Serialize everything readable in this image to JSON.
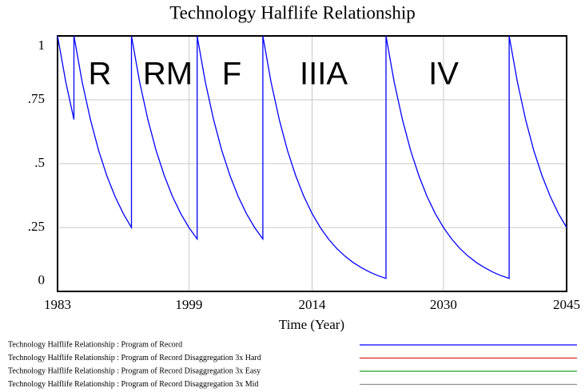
{
  "chart_data": {
    "type": "line",
    "title": "Technology Halflife Relationship",
    "xlabel": "Time (Year)",
    "annotations": [
      "R",
      "RM",
      "F",
      "IIIA",
      "IV"
    ],
    "xlim": [
      1983,
      2045
    ],
    "xticks": [
      1983,
      1999,
      2014,
      2030,
      2045
    ],
    "ylim": [
      0,
      1
    ],
    "yticks": [
      {
        "value": 0,
        "label": "0"
      },
      {
        "value": 0.25,
        "label": ".25"
      },
      {
        "value": 0.5,
        "label": ".5"
      },
      {
        "value": 0.75,
        "label": ".75"
      },
      {
        "value": 1,
        "label": "1"
      }
    ],
    "grid": true,
    "series": [
      {
        "name": "Technology Halflife Relationship : Program of Record",
        "color": "#0000ff",
        "x": [
          1983,
          1984,
          1985,
          1985,
          1986,
          1987,
          1988,
          1989,
          1990,
          1991,
          1992,
          1992,
          1993,
          1994,
          1995,
          1996,
          1997,
          1998,
          1999,
          2000,
          2000,
          2001,
          2002,
          2003,
          2004,
          2005,
          2006,
          2007,
          2008,
          2008,
          2009,
          2010,
          2011,
          2012,
          2013,
          2014,
          2015,
          2016,
          2017,
          2018,
          2019,
          2020,
          2021,
          2022,
          2023,
          2023,
          2024,
          2025,
          2026,
          2027,
          2028,
          2029,
          2030,
          2031,
          2032,
          2033,
          2034,
          2035,
          2036,
          2037,
          2038,
          2038,
          2039,
          2040,
          2041,
          2042,
          2043,
          2044,
          2045
        ],
        "values": [
          1,
          0.82,
          0.673,
          1,
          0.82,
          0.673,
          0.552,
          0.453,
          0.372,
          0.305,
          0.25,
          1,
          0.82,
          0.673,
          0.552,
          0.453,
          0.372,
          0.305,
          0.25,
          0.205,
          1,
          0.82,
          0.673,
          0.552,
          0.453,
          0.372,
          0.305,
          0.25,
          0.205,
          1,
          0.82,
          0.673,
          0.552,
          0.453,
          0.372,
          0.305,
          0.25,
          0.205,
          0.168,
          0.138,
          0.113,
          0.093,
          0.076,
          0.062,
          0.051,
          1,
          0.82,
          0.673,
          0.552,
          0.453,
          0.372,
          0.305,
          0.25,
          0.205,
          0.168,
          0.138,
          0.113,
          0.093,
          0.076,
          0.062,
          0.051,
          1,
          0.82,
          0.673,
          0.552,
          0.453,
          0.372,
          0.305,
          0.25
        ]
      },
      {
        "name": "Technology Halflife Relationship : Program of Record Disaggregation 3x Hard",
        "color": "#e02020"
      },
      {
        "name": "Technology Halflife Relationship : Program of Record Disaggregation 3x Easy",
        "color": "#20a020"
      },
      {
        "name": "Technology Halflife Relationship : Program of Record Disaggregation 3x Mid",
        "color": "#909090"
      }
    ]
  }
}
